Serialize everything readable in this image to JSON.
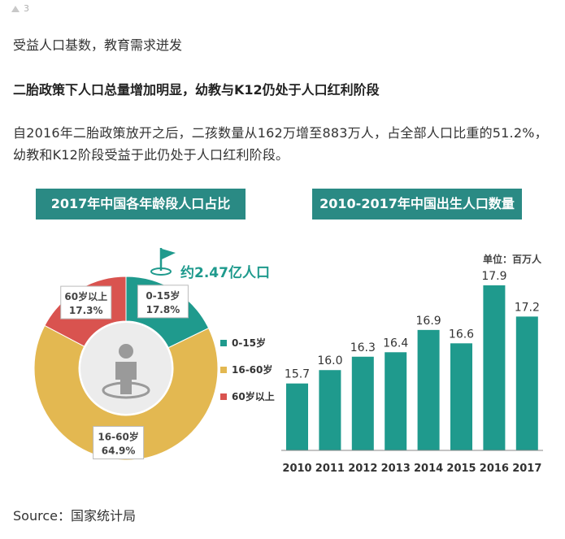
{
  "header": {
    "count": "3"
  },
  "text": {
    "line1": "受益人口基数，教育需求迸发",
    "line2": "二胎政策下人口总量增加明显，幼教与K12仍处于人口红利阶段",
    "line3": "自2016年二胎政策放开之后，二孩数量从162万增至883万人，占全部人口比重的51.2%，幼教和K12阶段受益于此仍处于人口红利阶段。"
  },
  "colors": {
    "teal": "#1f9a8d",
    "yellow": "#e3b851",
    "red": "#d9534f",
    "title_bg": "#2a8a84"
  },
  "icons": {
    "flag": "flag-icon",
    "person": "person-icon"
  },
  "source": "Source：国家统计局",
  "chart_data": [
    {
      "type": "pie",
      "title": "2017年中国各年龄段人口占比",
      "annotation": "约2.47亿人口",
      "slices": [
        {
          "name": "0-15岁",
          "value": 17.8,
          "label": "17.8%",
          "color": "#1f9a8d"
        },
        {
          "name": "16-60岁",
          "value": 64.9,
          "label": "64.9%",
          "color": "#e3b851"
        },
        {
          "name": "60岁以上",
          "value": 17.3,
          "label": "17.3%",
          "color": "#d9534f"
        }
      ],
      "legend": [
        "0-15岁",
        "16-60岁",
        "60岁以上"
      ],
      "legend_position": "right"
    },
    {
      "type": "bar",
      "title": "2010-2017年中国出生人口数量",
      "unit_label": "单位：百万人",
      "categories": [
        "2010",
        "2011",
        "2012",
        "2013",
        "2014",
        "2015",
        "2016",
        "2017"
      ],
      "values": [
        15.7,
        16.0,
        16.3,
        16.4,
        16.9,
        16.6,
        17.9,
        17.2
      ],
      "value_labels": [
        "15.7",
        "16.0",
        "16.3",
        "16.4",
        "16.9",
        "16.6",
        "17.9",
        "17.2"
      ],
      "ylim": [
        14.2,
        18.1
      ],
      "grid": false,
      "color": "#1f9a8d"
    }
  ]
}
